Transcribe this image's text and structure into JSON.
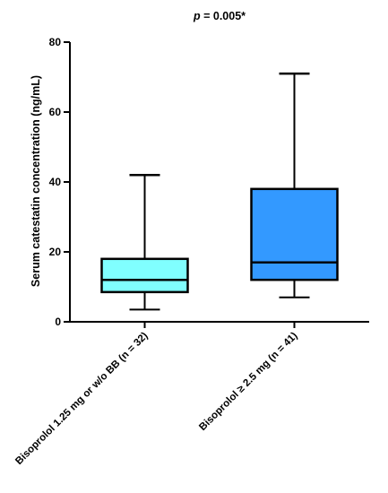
{
  "chart_data": {
    "type": "box",
    "title": "",
    "annotation": {
      "italic": "p",
      "rest": " = 0.005*"
    },
    "ylabel": "Serum catestatin concentration (ng/mL)",
    "xlabel": "",
    "ylim": [
      0,
      80
    ],
    "yticks": [
      0,
      20,
      40,
      60,
      80
    ],
    "grid": false,
    "categories": [
      "Bisoprolol 1.25 mg or w/o BB (n = 32)",
      "Bisoprolol ≥ 2.5 mg (n = 41)"
    ],
    "boxes": [
      {
        "min": 3.5,
        "q1": 8.5,
        "median": 12,
        "q3": 18,
        "max": 42,
        "color": "#80FFFF"
      },
      {
        "min": 7,
        "q1": 12,
        "median": 17,
        "q3": 38,
        "max": 71,
        "color": "#3399FF"
      }
    ]
  }
}
